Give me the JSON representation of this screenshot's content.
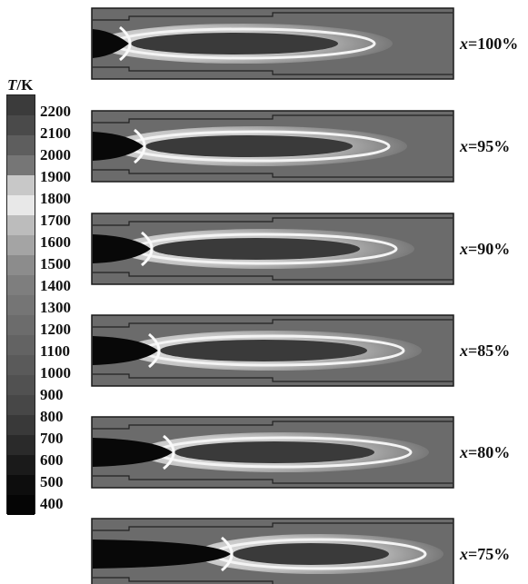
{
  "colorbar": {
    "var_symbol": "T",
    "unit_suffix": "/K",
    "ticks": [
      "2200",
      "2100",
      "2000",
      "1900",
      "1800",
      "1700",
      "1600",
      "1500",
      "1400",
      "1300",
      "1200",
      "1100",
      "1000",
      "900",
      "800",
      "700",
      "600",
      "500",
      "400"
    ],
    "colors": [
      "#3b3b3b",
      "#4a4a4a",
      "#5e5e5e",
      "#767676",
      "#c8c8c8",
      "#e8e8e8",
      "#bcbcbc",
      "#a4a4a4",
      "#8c8c8c",
      "#7e7e7e",
      "#757575",
      "#6c6c6c",
      "#636363",
      "#5a5a5a",
      "#515151",
      "#474747",
      "#393939",
      "#2a2a2a",
      "#1a1a1a",
      "#0d0d0d",
      "#050505"
    ]
  },
  "panels": [
    {
      "var": "x",
      "value": "=100%"
    },
    {
      "var": "x",
      "value": "=95%"
    },
    {
      "var": "x",
      "value": "=90%"
    },
    {
      "var": "x",
      "value": "=85%"
    },
    {
      "var": "x",
      "value": "=80%"
    },
    {
      "var": "x",
      "value": "=75%"
    }
  ]
}
